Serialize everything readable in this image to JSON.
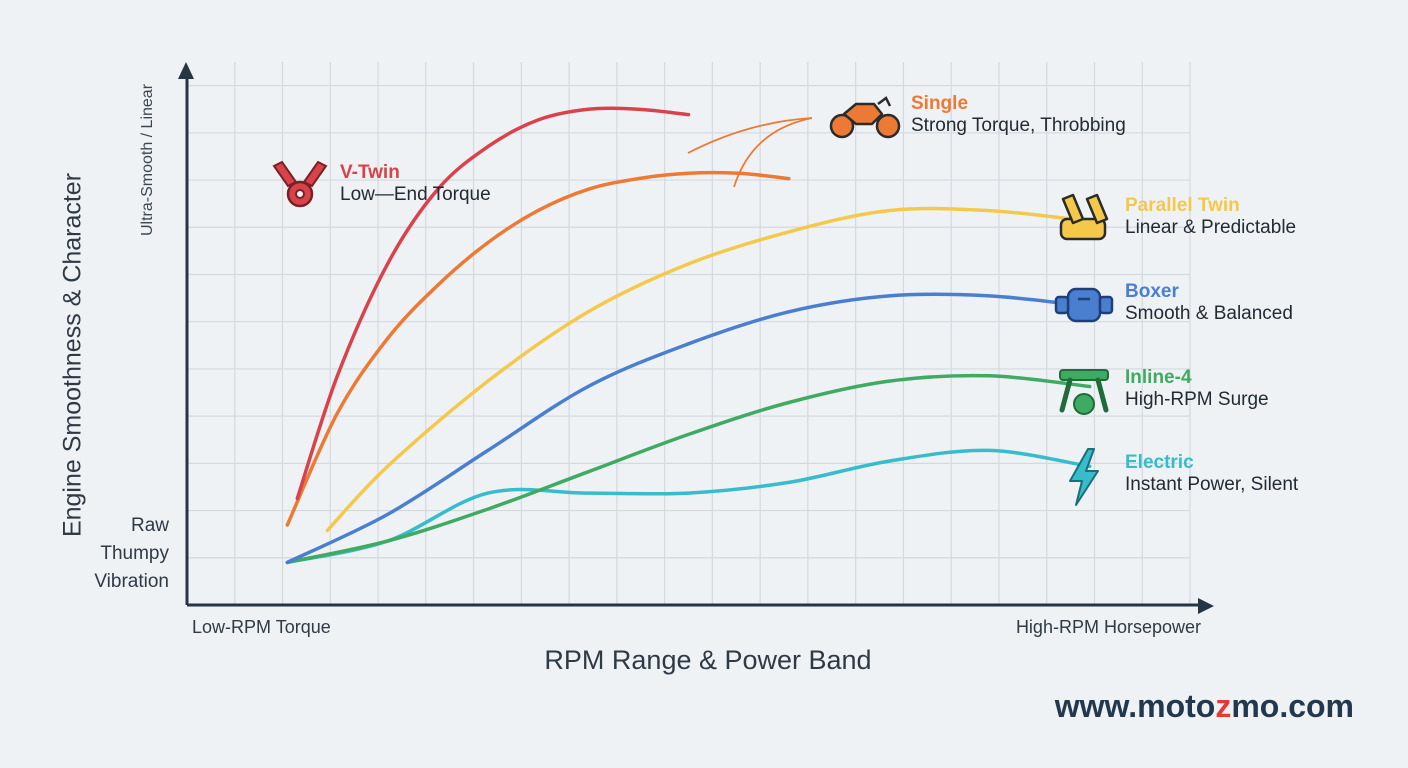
{
  "chart_data": {
    "type": "line",
    "xlabel": "RPM Range & Power Band",
    "ylabel": "Engine Smoothness & Character",
    "x_tick_labels": {
      "low": "Low-RPM Torque",
      "high": "High-RPM Horsepower"
    },
    "y_tick_labels": {
      "high": "Ultra-Smooth / Linear",
      "low": [
        "Raw",
        "Thumpy",
        "Vibration"
      ]
    },
    "xlim": [
      0,
      100
    ],
    "ylim": [
      0,
      100
    ],
    "grid": true,
    "series": [
      {
        "key": "vtwin",
        "name": "V-Twin",
        "description": "Low—End Torque",
        "color": "#d8434b",
        "icon": "v-twin-engine-icon",
        "points": [
          [
            11,
            20
          ],
          [
            15,
            43
          ],
          [
            20,
            64
          ],
          [
            25,
            78
          ],
          [
            30,
            86
          ],
          [
            35,
            91
          ],
          [
            40,
            93
          ],
          [
            45,
            93
          ],
          [
            50,
            92
          ]
        ]
      },
      {
        "key": "single",
        "name": "Single",
        "description": "Strong Torque, Throbbing",
        "color": "#ec7a35",
        "icon": "motorcycle-icon",
        "points": [
          [
            10,
            15
          ],
          [
            15,
            36
          ],
          [
            20,
            50
          ],
          [
            25,
            60
          ],
          [
            30,
            68
          ],
          [
            35,
            74
          ],
          [
            40,
            78
          ],
          [
            45,
            80
          ],
          [
            50,
            81
          ],
          [
            55,
            81
          ],
          [
            60,
            80
          ]
        ]
      },
      {
        "key": "paralleltwin",
        "name": "Parallel Twin",
        "description": "Linear & Predictable",
        "color": "#f4c94a",
        "icon": "parallel-twin-engine-icon",
        "points": [
          [
            14,
            14
          ],
          [
            20,
            26
          ],
          [
            30,
            42
          ],
          [
            40,
            55
          ],
          [
            50,
            64
          ],
          [
            60,
            70
          ],
          [
            70,
            74
          ],
          [
            80,
            74
          ],
          [
            90,
            72
          ]
        ]
      },
      {
        "key": "boxer",
        "name": "Boxer",
        "description": "Smooth & Balanced",
        "color": "#4a7fd0",
        "icon": "boxer-engine-icon",
        "points": [
          [
            10,
            8
          ],
          [
            20,
            17
          ],
          [
            30,
            29
          ],
          [
            40,
            41
          ],
          [
            50,
            49
          ],
          [
            60,
            55
          ],
          [
            70,
            58
          ],
          [
            80,
            58
          ],
          [
            90,
            56
          ]
        ]
      },
      {
        "key": "inline4",
        "name": "Inline-4",
        "description": "High-RPM Surge",
        "color": "#3faa61",
        "icon": "inline-four-engine-icon",
        "points": [
          [
            10,
            8
          ],
          [
            20,
            12
          ],
          [
            30,
            18
          ],
          [
            40,
            25
          ],
          [
            50,
            32
          ],
          [
            60,
            38
          ],
          [
            70,
            42
          ],
          [
            80,
            43
          ],
          [
            90,
            41
          ]
        ]
      },
      {
        "key": "electric",
        "name": "Electric",
        "description": "Instant Power, Silent",
        "color": "#36bccb",
        "icon": "lightning-bolt-icon",
        "points": [
          [
            10,
            8
          ],
          [
            20,
            12
          ],
          [
            30,
            21
          ],
          [
            40,
            21
          ],
          [
            50,
            21
          ],
          [
            60,
            23
          ],
          [
            70,
            27
          ],
          [
            80,
            29
          ],
          [
            90,
            26
          ]
        ]
      }
    ]
  },
  "watermark": {
    "prefix": "www.moto",
    "accent": "z",
    "suffix": "mo.com",
    "accent_color": "#e53935"
  }
}
